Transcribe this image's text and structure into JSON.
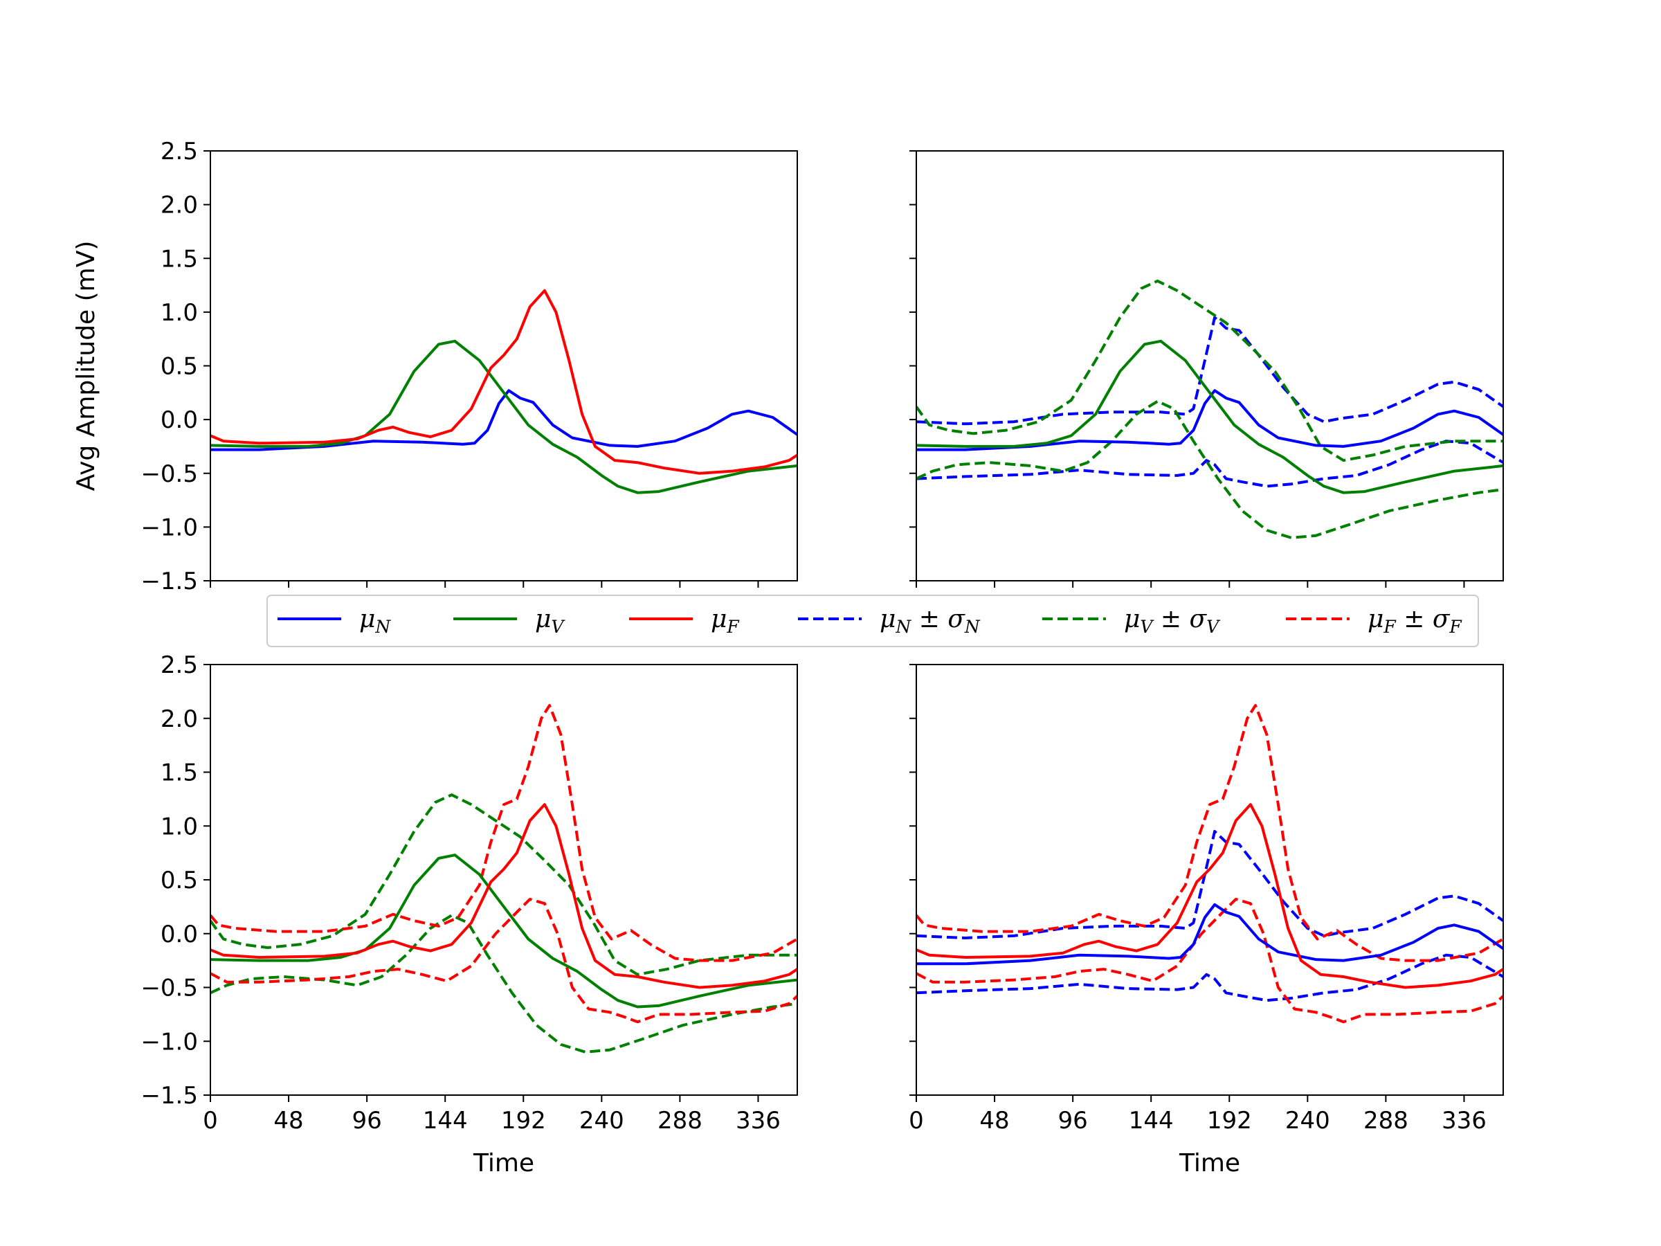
{
  "chart_data": {
    "type": "line",
    "figure": {
      "ylabel": "Avg Amplitude (mV)",
      "xlabel": "Time",
      "xlim": [
        0,
        360
      ],
      "ylim": [
        -1.5,
        2.5
      ],
      "xticks": [
        0,
        48,
        96,
        144,
        192,
        240,
        288,
        336
      ],
      "xtick_labels": [
        "0",
        "48",
        "96",
        "144",
        "192",
        "240",
        "288",
        "336"
      ],
      "yticks": [
        -1.5,
        -1.0,
        -0.5,
        0.0,
        0.5,
        1.0,
        1.5,
        2.0,
        2.5
      ],
      "ytick_labels": [
        "−1.5",
        "−1.0",
        "−0.5",
        "0.0",
        "0.5",
        "1.0",
        "1.5",
        "2.0",
        "2.5"
      ]
    },
    "legend": {
      "placement": "center, between rows",
      "entries": [
        {
          "label": "μ_N",
          "color": "#0000ff",
          "style": "solid",
          "base": "μ",
          "sub": "N"
        },
        {
          "label": "μ_V",
          "color": "#008000",
          "style": "solid",
          "base": "μ",
          "sub": "V"
        },
        {
          "label": "μ_F",
          "color": "#ff0000",
          "style": "solid",
          "base": "μ",
          "sub": "F"
        },
        {
          "label": "μ_N ± σ_N",
          "color": "#0000ff",
          "style": "dashed",
          "base": "μ",
          "sub": "N",
          "pm": "±",
          "base2": "σ",
          "sub2": "N"
        },
        {
          "label": "μ_V ± σ_V",
          "color": "#008000",
          "style": "dashed",
          "base": "μ",
          "sub": "V",
          "pm": "±",
          "base2": "σ",
          "sub2": "V"
        },
        {
          "label": "μ_F ± σ_F",
          "color": "#ff0000",
          "style": "dashed",
          "base": "μ",
          "sub": "F",
          "pm": "±",
          "base2": "σ",
          "sub2": "F"
        }
      ]
    },
    "series": {
      "muN": {
        "name": "μ_N",
        "color": "#0000ff",
        "dashed": false,
        "points": [
          [
            0,
            -0.28
          ],
          [
            30,
            -0.28
          ],
          [
            70,
            -0.25
          ],
          [
            100,
            -0.2
          ],
          [
            130,
            -0.21
          ],
          [
            155,
            -0.23
          ],
          [
            162,
            -0.22
          ],
          [
            170,
            -0.1
          ],
          [
            177,
            0.15
          ],
          [
            183,
            0.27
          ],
          [
            190,
            0.2
          ],
          [
            198,
            0.16
          ],
          [
            210,
            -0.05
          ],
          [
            222,
            -0.17
          ],
          [
            245,
            -0.24
          ],
          [
            262,
            -0.25
          ],
          [
            285,
            -0.2
          ],
          [
            305,
            -0.08
          ],
          [
            320,
            0.05
          ],
          [
            330,
            0.08
          ],
          [
            345,
            0.02
          ],
          [
            360,
            -0.14
          ]
        ]
      },
      "muV": {
        "name": "μ_V",
        "color": "#008000",
        "dashed": false,
        "points": [
          [
            0,
            -0.24
          ],
          [
            30,
            -0.25
          ],
          [
            60,
            -0.25
          ],
          [
            80,
            -0.22
          ],
          [
            95,
            -0.15
          ],
          [
            110,
            0.05
          ],
          [
            125,
            0.45
          ],
          [
            140,
            0.7
          ],
          [
            150,
            0.73
          ],
          [
            165,
            0.55
          ],
          [
            180,
            0.25
          ],
          [
            195,
            -0.05
          ],
          [
            210,
            -0.23
          ],
          [
            225,
            -0.35
          ],
          [
            240,
            -0.52
          ],
          [
            250,
            -0.62
          ],
          [
            262,
            -0.68
          ],
          [
            275,
            -0.67
          ],
          [
            300,
            -0.58
          ],
          [
            330,
            -0.48
          ],
          [
            360,
            -0.43
          ]
        ]
      },
      "muF": {
        "name": "μ_F",
        "color": "#ff0000",
        "dashed": false,
        "points": [
          [
            0,
            -0.15
          ],
          [
            8,
            -0.2
          ],
          [
            30,
            -0.22
          ],
          [
            70,
            -0.21
          ],
          [
            90,
            -0.18
          ],
          [
            103,
            -0.1
          ],
          [
            112,
            -0.07
          ],
          [
            122,
            -0.12
          ],
          [
            135,
            -0.16
          ],
          [
            148,
            -0.1
          ],
          [
            160,
            0.1
          ],
          [
            172,
            0.48
          ],
          [
            180,
            0.6
          ],
          [
            188,
            0.75
          ],
          [
            196,
            1.05
          ],
          [
            205,
            1.2
          ],
          [
            212,
            1.0
          ],
          [
            220,
            0.55
          ],
          [
            228,
            0.05
          ],
          [
            236,
            -0.25
          ],
          [
            248,
            -0.38
          ],
          [
            262,
            -0.4
          ],
          [
            278,
            -0.45
          ],
          [
            300,
            -0.5
          ],
          [
            320,
            -0.48
          ],
          [
            340,
            -0.44
          ],
          [
            355,
            -0.38
          ],
          [
            360,
            -0.33
          ]
        ]
      },
      "muNp": {
        "name": "μ_N + σ_N",
        "color": "#0000ff",
        "dashed": true,
        "points": [
          [
            0,
            -0.02
          ],
          [
            30,
            -0.04
          ],
          [
            60,
            -0.02
          ],
          [
            90,
            0.05
          ],
          [
            120,
            0.07
          ],
          [
            150,
            0.07
          ],
          [
            165,
            0.05
          ],
          [
            170,
            0.1
          ],
          [
            177,
            0.55
          ],
          [
            183,
            0.95
          ],
          [
            190,
            0.85
          ],
          [
            198,
            0.83
          ],
          [
            210,
            0.6
          ],
          [
            225,
            0.3
          ],
          [
            240,
            0.05
          ],
          [
            250,
            -0.02
          ],
          [
            260,
            0.01
          ],
          [
            280,
            0.05
          ],
          [
            300,
            0.18
          ],
          [
            320,
            0.33
          ],
          [
            330,
            0.35
          ],
          [
            345,
            0.28
          ],
          [
            360,
            0.12
          ]
        ]
      },
      "muNm": {
        "name": "μ_N − σ_N",
        "color": "#0000ff",
        "dashed": true,
        "points": [
          [
            0,
            -0.55
          ],
          [
            30,
            -0.53
          ],
          [
            70,
            -0.51
          ],
          [
            100,
            -0.47
          ],
          [
            130,
            -0.51
          ],
          [
            160,
            -0.52
          ],
          [
            170,
            -0.5
          ],
          [
            178,
            -0.38
          ],
          [
            183,
            -0.42
          ],
          [
            190,
            -0.55
          ],
          [
            200,
            -0.58
          ],
          [
            215,
            -0.62
          ],
          [
            230,
            -0.6
          ],
          [
            250,
            -0.55
          ],
          [
            270,
            -0.52
          ],
          [
            290,
            -0.42
          ],
          [
            310,
            -0.28
          ],
          [
            325,
            -0.2
          ],
          [
            340,
            -0.22
          ],
          [
            360,
            -0.4
          ]
        ]
      },
      "muVp": {
        "name": "μ_V + σ_V",
        "color": "#008000",
        "dashed": true,
        "points": [
          [
            0,
            0.12
          ],
          [
            8,
            -0.05
          ],
          [
            20,
            -0.1
          ],
          [
            35,
            -0.13
          ],
          [
            55,
            -0.1
          ],
          [
            75,
            -0.02
          ],
          [
            95,
            0.18
          ],
          [
            110,
            0.55
          ],
          [
            125,
            0.95
          ],
          [
            138,
            1.22
          ],
          [
            148,
            1.29
          ],
          [
            160,
            1.2
          ],
          [
            175,
            1.05
          ],
          [
            190,
            0.9
          ],
          [
            205,
            0.68
          ],
          [
            220,
            0.45
          ],
          [
            235,
            0.1
          ],
          [
            248,
            -0.25
          ],
          [
            262,
            -0.38
          ],
          [
            280,
            -0.33
          ],
          [
            300,
            -0.25
          ],
          [
            330,
            -0.2
          ],
          [
            360,
            -0.2
          ]
        ]
      },
      "muVm": {
        "name": "μ_V − σ_V",
        "color": "#008000",
        "dashed": true,
        "points": [
          [
            0,
            -0.55
          ],
          [
            10,
            -0.48
          ],
          [
            25,
            -0.42
          ],
          [
            45,
            -0.4
          ],
          [
            70,
            -0.43
          ],
          [
            90,
            -0.48
          ],
          [
            105,
            -0.4
          ],
          [
            120,
            -0.2
          ],
          [
            135,
            0.05
          ],
          [
            148,
            0.17
          ],
          [
            158,
            0.1
          ],
          [
            170,
            -0.2
          ],
          [
            185,
            -0.55
          ],
          [
            200,
            -0.85
          ],
          [
            215,
            -1.03
          ],
          [
            230,
            -1.1
          ],
          [
            245,
            -1.08
          ],
          [
            265,
            -0.98
          ],
          [
            290,
            -0.85
          ],
          [
            320,
            -0.75
          ],
          [
            345,
            -0.68
          ],
          [
            360,
            -0.65
          ]
        ]
      },
      "muFp": {
        "name": "μ_F + σ_F",
        "color": "#ff0000",
        "dashed": true,
        "points": [
          [
            0,
            0.17
          ],
          [
            5,
            0.08
          ],
          [
            15,
            0.05
          ],
          [
            40,
            0.02
          ],
          [
            70,
            0.02
          ],
          [
            95,
            0.07
          ],
          [
            112,
            0.18
          ],
          [
            125,
            0.12
          ],
          [
            140,
            0.07
          ],
          [
            152,
            0.15
          ],
          [
            165,
            0.45
          ],
          [
            172,
            0.85
          ],
          [
            180,
            1.2
          ],
          [
            188,
            1.25
          ],
          [
            195,
            1.55
          ],
          [
            203,
            2.0
          ],
          [
            208,
            2.12
          ],
          [
            215,
            1.85
          ],
          [
            222,
            1.2
          ],
          [
            228,
            0.6
          ],
          [
            236,
            0.15
          ],
          [
            246,
            -0.05
          ],
          [
            258,
            0.03
          ],
          [
            270,
            -0.1
          ],
          [
            285,
            -0.23
          ],
          [
            300,
            -0.25
          ],
          [
            320,
            -0.25
          ],
          [
            345,
            -0.18
          ],
          [
            360,
            -0.05
          ]
        ]
      },
      "muFm": {
        "name": "μ_F − σ_F",
        "color": "#ff0000",
        "dashed": true,
        "points": [
          [
            0,
            -0.37
          ],
          [
            10,
            -0.45
          ],
          [
            30,
            -0.45
          ],
          [
            60,
            -0.43
          ],
          [
            85,
            -0.4
          ],
          [
            100,
            -0.35
          ],
          [
            115,
            -0.33
          ],
          [
            130,
            -0.38
          ],
          [
            145,
            -0.44
          ],
          [
            160,
            -0.3
          ],
          [
            175,
            0.0
          ],
          [
            188,
            0.2
          ],
          [
            196,
            0.32
          ],
          [
            205,
            0.28
          ],
          [
            213,
            0.0
          ],
          [
            222,
            -0.5
          ],
          [
            232,
            -0.7
          ],
          [
            245,
            -0.73
          ],
          [
            255,
            -0.78
          ],
          [
            262,
            -0.82
          ],
          [
            275,
            -0.75
          ],
          [
            295,
            -0.75
          ],
          [
            320,
            -0.73
          ],
          [
            340,
            -0.72
          ],
          [
            355,
            -0.65
          ],
          [
            360,
            -0.58
          ]
        ]
      }
    },
    "subplots": [
      {
        "position": "top-left",
        "series": [
          "muN",
          "muV",
          "muF"
        ],
        "ylabel": true,
        "xticklabels": false,
        "yticklabels": true
      },
      {
        "position": "top-right",
        "series": [
          "muNp",
          "muNm",
          "muVp",
          "muVm",
          "muN",
          "muV"
        ],
        "ylabel": false,
        "xticklabels": false,
        "yticklabels": false
      },
      {
        "position": "bottom-left",
        "series": [
          "muVp",
          "muVm",
          "muFp",
          "muFm",
          "muV",
          "muF"
        ],
        "ylabel": false,
        "xticklabels": true,
        "yticklabels": true
      },
      {
        "position": "bottom-right",
        "series": [
          "muNp",
          "muNm",
          "muFp",
          "muFm",
          "muN",
          "muF"
        ],
        "ylabel": false,
        "xticklabels": true,
        "yticklabels": false
      }
    ]
  }
}
